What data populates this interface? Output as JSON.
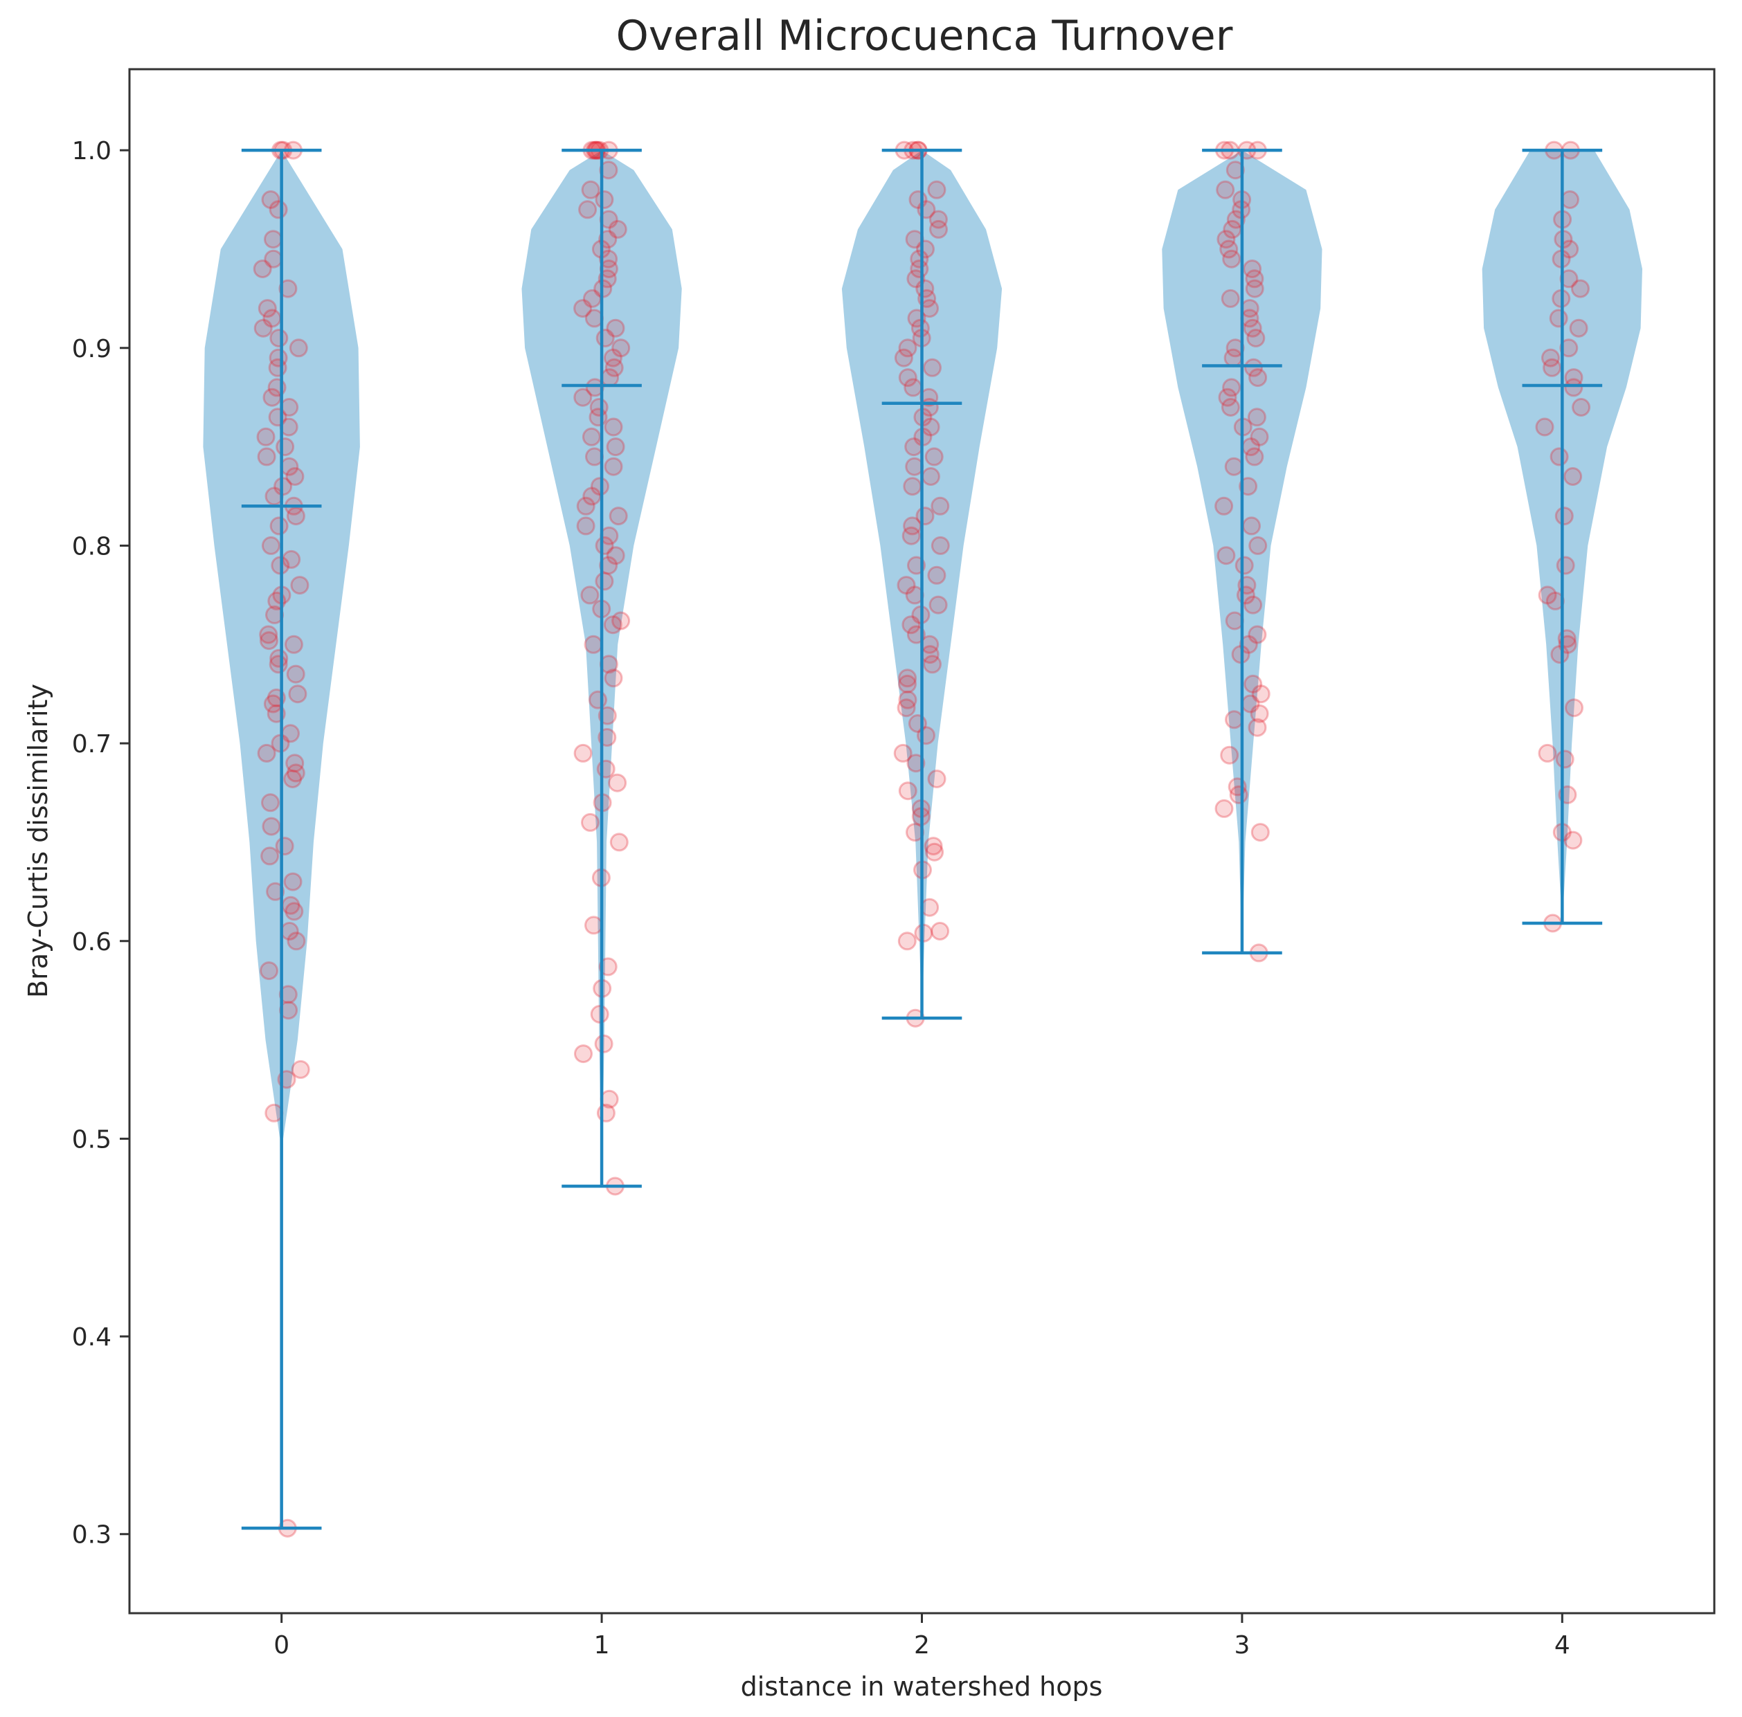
{
  "chart_data": {
    "type": "violin",
    "title": "Overall Microcuenca Turnover",
    "xlabel": "distance in watershed hops",
    "ylabel": "Bray-Curtis dissimilarity",
    "ylim": [
      0.26,
      1.041
    ],
    "xlim": [
      -0.475,
      4.475
    ],
    "yticks": [
      0.3,
      0.4,
      0.5,
      0.6,
      0.7,
      0.8,
      0.9,
      1.0
    ],
    "ytick_labels": [
      "0.3",
      "0.4",
      "0.5",
      "0.6",
      "0.7",
      "0.8",
      "0.9",
      "1.0"
    ],
    "categories": [
      "0",
      "1",
      "2",
      "3",
      "4"
    ],
    "colors": {
      "violin_fill": "#a6cfe6",
      "whisker": "#1f86bf",
      "points": "#e6202d"
    },
    "violins": [
      {
        "name": "0",
        "min": 0.303,
        "max": 1.0,
        "mean": 0.82,
        "density": [
          [
            0.3,
            0.0
          ],
          [
            0.5,
            0.005
          ],
          [
            0.55,
            0.05
          ],
          [
            0.6,
            0.08
          ],
          [
            0.65,
            0.1
          ],
          [
            0.7,
            0.13
          ],
          [
            0.75,
            0.17
          ],
          [
            0.8,
            0.21
          ],
          [
            0.85,
            0.245
          ],
          [
            0.9,
            0.24
          ],
          [
            0.95,
            0.19
          ],
          [
            1.0,
            0.0
          ]
        ],
        "points": [
          0.303,
          0.513,
          0.53,
          0.535,
          0.565,
          0.573,
          0.585,
          0.6,
          0.605,
          0.615,
          0.618,
          0.625,
          0.63,
          0.643,
          0.648,
          0.658,
          0.67,
          0.682,
          0.685,
          0.69,
          0.695,
          0.7,
          0.705,
          0.715,
          0.72,
          0.723,
          0.725,
          0.735,
          0.74,
          0.743,
          0.75,
          0.752,
          0.755,
          0.765,
          0.772,
          0.775,
          0.78,
          0.79,
          0.793,
          0.8,
          0.81,
          0.815,
          0.82,
          0.825,
          0.83,
          0.835,
          0.84,
          0.845,
          0.85,
          0.855,
          0.86,
          0.865,
          0.87,
          0.875,
          0.88,
          0.89,
          0.895,
          0.9,
          0.905,
          0.91,
          0.915,
          0.92,
          0.93,
          0.94,
          0.945,
          0.955,
          0.97,
          0.975,
          1.0,
          1.0,
          1.0
        ]
      },
      {
        "name": "1",
        "min": 0.476,
        "max": 1.0,
        "mean": 0.881,
        "density": [
          [
            0.476,
            0.0
          ],
          [
            0.55,
            0.008
          ],
          [
            0.65,
            0.015
          ],
          [
            0.75,
            0.05
          ],
          [
            0.8,
            0.1
          ],
          [
            0.85,
            0.17
          ],
          [
            0.9,
            0.24
          ],
          [
            0.93,
            0.25
          ],
          [
            0.96,
            0.22
          ],
          [
            0.99,
            0.1
          ],
          [
            1.0,
            0.0
          ]
        ],
        "points": [
          0.476,
          0.513,
          0.52,
          0.543,
          0.548,
          0.563,
          0.576,
          0.587,
          0.608,
          0.632,
          0.65,
          0.66,
          0.67,
          0.68,
          0.687,
          0.695,
          0.703,
          0.714,
          0.722,
          0.733,
          0.74,
          0.75,
          0.76,
          0.762,
          0.768,
          0.775,
          0.782,
          0.79,
          0.795,
          0.8,
          0.805,
          0.81,
          0.815,
          0.82,
          0.825,
          0.83,
          0.84,
          0.845,
          0.85,
          0.855,
          0.86,
          0.865,
          0.87,
          0.875,
          0.88,
          0.885,
          0.89,
          0.895,
          0.9,
          0.905,
          0.91,
          0.915,
          0.92,
          0.925,
          0.93,
          0.935,
          0.94,
          0.945,
          0.95,
          0.955,
          0.96,
          0.965,
          0.97,
          0.975,
          0.98,
          0.99,
          1.0,
          1.0,
          1.0,
          1.0,
          1.0,
          1.0
        ]
      },
      {
        "name": "2",
        "min": 0.561,
        "max": 1.0,
        "mean": 0.872,
        "density": [
          [
            0.561,
            0.0
          ],
          [
            0.6,
            0.008
          ],
          [
            0.65,
            0.02
          ],
          [
            0.7,
            0.05
          ],
          [
            0.75,
            0.09
          ],
          [
            0.8,
            0.13
          ],
          [
            0.85,
            0.18
          ],
          [
            0.9,
            0.235
          ],
          [
            0.93,
            0.25
          ],
          [
            0.96,
            0.2
          ],
          [
            0.99,
            0.09
          ],
          [
            1.0,
            0.0
          ]
        ],
        "points": [
          0.561,
          0.6,
          0.604,
          0.605,
          0.617,
          0.636,
          0.645,
          0.648,
          0.655,
          0.663,
          0.667,
          0.676,
          0.682,
          0.69,
          0.695,
          0.704,
          0.71,
          0.718,
          0.722,
          0.73,
          0.733,
          0.74,
          0.745,
          0.75,
          0.755,
          0.76,
          0.765,
          0.77,
          0.775,
          0.78,
          0.785,
          0.79,
          0.8,
          0.805,
          0.81,
          0.815,
          0.82,
          0.83,
          0.835,
          0.84,
          0.845,
          0.85,
          0.855,
          0.86,
          0.865,
          0.87,
          0.875,
          0.88,
          0.885,
          0.89,
          0.895,
          0.9,
          0.905,
          0.91,
          0.915,
          0.92,
          0.925,
          0.93,
          0.935,
          0.94,
          0.945,
          0.95,
          0.955,
          0.96,
          0.965,
          0.97,
          0.975,
          0.98,
          1.0,
          1.0,
          1.0,
          1.0
        ]
      },
      {
        "name": "3",
        "min": 0.594,
        "max": 1.0,
        "mean": 0.891,
        "density": [
          [
            0.594,
            0.0
          ],
          [
            0.65,
            0.01
          ],
          [
            0.7,
            0.035
          ],
          [
            0.75,
            0.06
          ],
          [
            0.8,
            0.09
          ],
          [
            0.84,
            0.14
          ],
          [
            0.88,
            0.2
          ],
          [
            0.92,
            0.245
          ],
          [
            0.95,
            0.25
          ],
          [
            0.98,
            0.2
          ],
          [
            1.0,
            0.0
          ]
        ],
        "points": [
          0.594,
          0.655,
          0.667,
          0.674,
          0.678,
          0.694,
          0.708,
          0.712,
          0.715,
          0.72,
          0.725,
          0.73,
          0.745,
          0.75,
          0.755,
          0.762,
          0.77,
          0.775,
          0.78,
          0.79,
          0.795,
          0.8,
          0.81,
          0.82,
          0.83,
          0.84,
          0.845,
          0.85,
          0.855,
          0.86,
          0.865,
          0.87,
          0.875,
          0.88,
          0.885,
          0.89,
          0.895,
          0.9,
          0.905,
          0.91,
          0.915,
          0.92,
          0.925,
          0.93,
          0.935,
          0.94,
          0.945,
          0.95,
          0.955,
          0.96,
          0.965,
          0.97,
          0.975,
          0.98,
          0.99,
          1.0,
          1.0,
          1.0,
          1.0
        ]
      },
      {
        "name": "4",
        "min": 0.609,
        "max": 1.0,
        "mean": 0.881,
        "density": [
          [
            0.609,
            0.0
          ],
          [
            0.65,
            0.015
          ],
          [
            0.7,
            0.03
          ],
          [
            0.75,
            0.05
          ],
          [
            0.8,
            0.08
          ],
          [
            0.85,
            0.14
          ],
          [
            0.88,
            0.2
          ],
          [
            0.91,
            0.245
          ],
          [
            0.94,
            0.25
          ],
          [
            0.97,
            0.21
          ],
          [
            1.0,
            0.1
          ],
          [
            1.0,
            0.0
          ]
        ],
        "points": [
          0.609,
          0.651,
          0.655,
          0.674,
          0.692,
          0.695,
          0.718,
          0.745,
          0.75,
          0.753,
          0.772,
          0.775,
          0.79,
          0.815,
          0.835,
          0.845,
          0.86,
          0.87,
          0.88,
          0.885,
          0.89,
          0.895,
          0.9,
          0.91,
          0.915,
          0.925,
          0.93,
          0.935,
          0.945,
          0.95,
          0.955,
          0.965,
          0.975,
          1.0,
          1.0
        ]
      }
    ]
  }
}
